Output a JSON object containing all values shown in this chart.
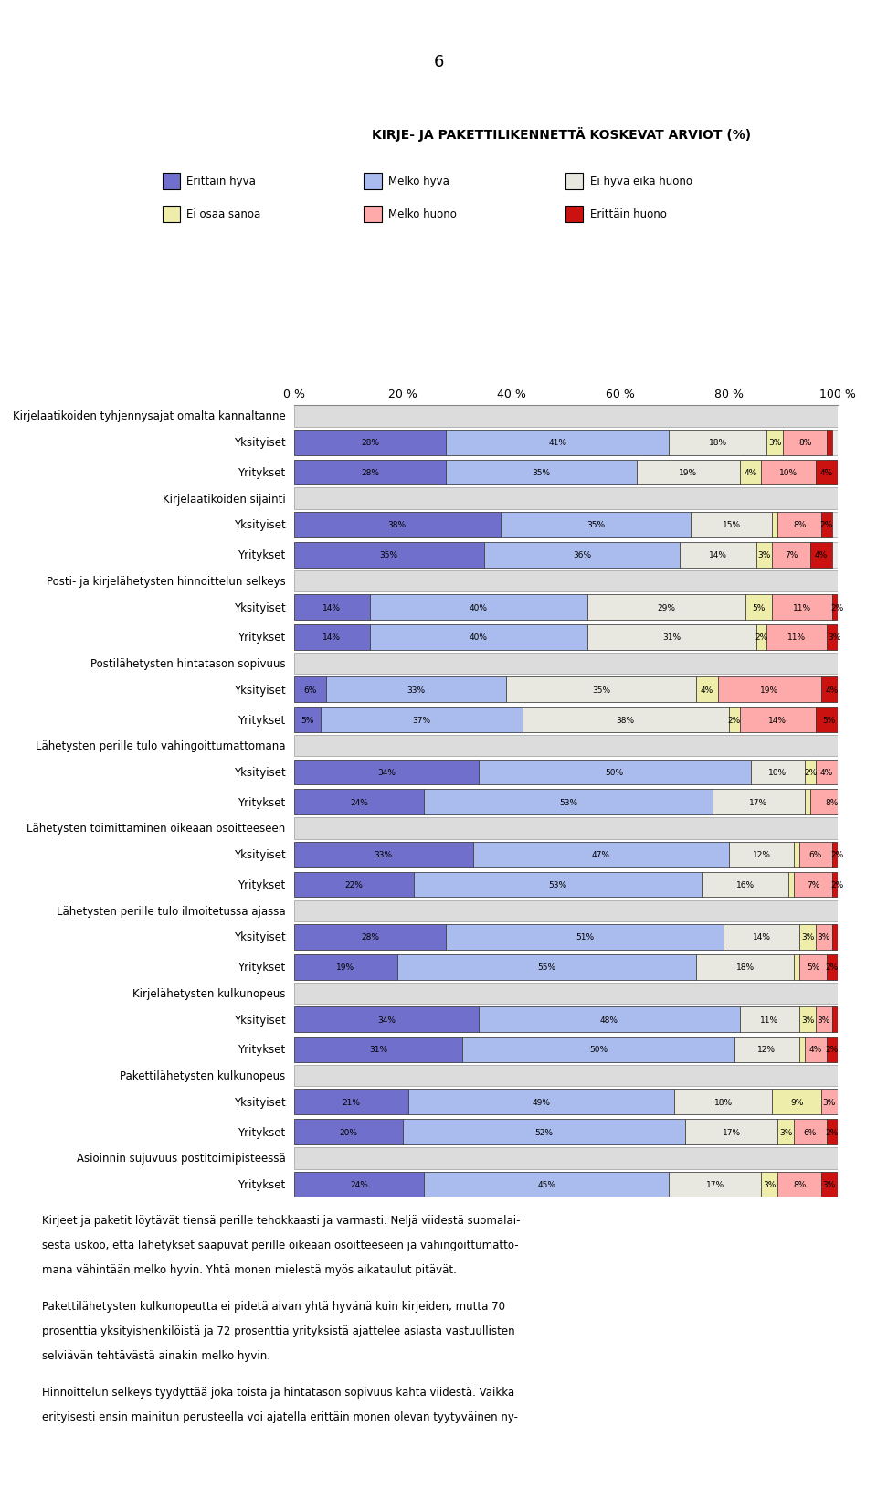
{
  "title": "KIRJE- JA PAKETTILIKENNETTÄ KOSKEVAT ARVIOT (%)",
  "page_number": "6",
  "legend": [
    {
      "label": "Erittäin hyvä",
      "color": "#7070CC"
    },
    {
      "label": "Melko hyvä",
      "color": "#AABBEE"
    },
    {
      "label": "Ei hyvä eikä huono",
      "color": "#E8E8E0"
    },
    {
      "label": "Ei osaa sanoa",
      "color": "#EEEEAA"
    },
    {
      "label": "Melko huono",
      "color": "#FFAAAA"
    },
    {
      "label": "Erittäin huono",
      "color": "#CC1111"
    }
  ],
  "sections": [
    {
      "header": "Kirjelaatikoiden tyhjennysajat omalta kannaltanne",
      "rows": [
        {
          "label": "Yksityiset",
          "values": [
            28,
            41,
            18,
            3,
            8,
            1
          ],
          "labels": [
            "28%",
            "41%",
            "18%",
            "3%",
            "8%",
            "1%"
          ]
        },
        {
          "label": "Yritykset",
          "values": [
            28,
            35,
            19,
            4,
            10,
            4
          ],
          "labels": [
            "28%",
            "35%",
            "19%",
            "4%",
            "10%",
            "4%"
          ]
        }
      ]
    },
    {
      "header": "Kirjelaatikoiden sijainti",
      "rows": [
        {
          "label": "Yksityiset",
          "values": [
            38,
            35,
            15,
            1,
            8,
            2
          ],
          "labels": [
            "38%",
            "35%",
            "15%",
            "1%",
            "8%",
            "2%"
          ]
        },
        {
          "label": "Yritykset",
          "values": [
            35,
            36,
            14,
            3,
            7,
            4
          ],
          "labels": [
            "35%",
            "36%",
            "14%",
            "3%",
            "7%",
            "4%"
          ]
        }
      ]
    },
    {
      "header": "Posti- ja kirjelähetysten hinnoittelun selkeys",
      "rows": [
        {
          "label": "Yksityiset",
          "values": [
            14,
            40,
            29,
            5,
            11,
            2
          ],
          "labels": [
            "14%",
            "40%",
            "29%",
            "5%",
            "11%",
            "2%"
          ]
        },
        {
          "label": "Yritykset",
          "values": [
            14,
            40,
            31,
            2,
            11,
            3
          ],
          "labels": [
            "14%",
            "40%",
            "31%",
            "2%",
            "11%",
            "3%"
          ]
        }
      ]
    },
    {
      "header": "Postilähetysten hintatason sopivuus",
      "rows": [
        {
          "label": "Yksityiset",
          "values": [
            6,
            33,
            35,
            4,
            19,
            4
          ],
          "labels": [
            "6%",
            "33%",
            "35%",
            "4%",
            "19%",
            "4%"
          ]
        },
        {
          "label": "Yritykset",
          "values": [
            5,
            37,
            38,
            2,
            14,
            5
          ],
          "labels": [
            "5%",
            "37%",
            "38%",
            "2%",
            "14%",
            "5%"
          ]
        }
      ]
    },
    {
      "header": "Lähetysten perille tulo vahingoittumattomana",
      "rows": [
        {
          "label": "Yksityiset",
          "values": [
            34,
            50,
            10,
            2,
            4,
            1
          ],
          "labels": [
            "34%",
            "50%",
            "10%",
            "2%",
            "4%",
            "1%"
          ]
        },
        {
          "label": "Yritykset",
          "values": [
            24,
            53,
            17,
            1,
            8,
            0
          ],
          "labels": [
            "24%",
            "53%",
            "17%",
            "1%",
            "8%",
            ""
          ]
        }
      ]
    },
    {
      "header": "Lähetysten toimittaminen oikeaan osoitteeseen",
      "rows": [
        {
          "label": "Yksityiset",
          "values": [
            33,
            47,
            12,
            1,
            6,
            2
          ],
          "labels": [
            "33%",
            "47%",
            "12%",
            "1%",
            "6%",
            "2%"
          ]
        },
        {
          "label": "Yritykset",
          "values": [
            22,
            53,
            16,
            1,
            7,
            2
          ],
          "labels": [
            "22%",
            "53%",
            "16%",
            "1%",
            "7%",
            "2%"
          ]
        }
      ]
    },
    {
      "header": "Lähetysten perille tulo ilmoitetussa ajassa",
      "rows": [
        {
          "label": "Yksityiset",
          "values": [
            28,
            51,
            14,
            3,
            3,
            1
          ],
          "labels": [
            "28%",
            "51%",
            "14%",
            "3%",
            "3%",
            "1%"
          ]
        },
        {
          "label": "Yritykset",
          "values": [
            19,
            55,
            18,
            1,
            5,
            2
          ],
          "labels": [
            "19%",
            "55%",
            "18%",
            "1%",
            "5%",
            "2%"
          ]
        }
      ]
    },
    {
      "header": "Kirjelähetysten kulkunopeus",
      "rows": [
        {
          "label": "Yksityiset",
          "values": [
            34,
            48,
            11,
            3,
            3,
            1
          ],
          "labels": [
            "34%",
            "48%",
            "11%",
            "3%",
            "3%",
            "1%"
          ]
        },
        {
          "label": "Yritykset",
          "values": [
            31,
            50,
            12,
            1,
            4,
            2
          ],
          "labels": [
            "31%",
            "50%",
            "12%",
            "1%",
            "4%",
            "2%"
          ]
        }
      ]
    },
    {
      "header": "Pakettilähetysten kulkunopeus",
      "rows": [
        {
          "label": "Yksityiset",
          "values": [
            21,
            49,
            18,
            9,
            3,
            0
          ],
          "labels": [
            "21%",
            "49%",
            "18%",
            "9%",
            "3%",
            ""
          ]
        },
        {
          "label": "Yritykset",
          "values": [
            20,
            52,
            17,
            3,
            6,
            2
          ],
          "labels": [
            "20%",
            "52%",
            "17%",
            "3%",
            "6%",
            "2%"
          ]
        }
      ]
    },
    {
      "header": "Asioinnin sujuvuus postitoimipisteessä",
      "rows": [
        {
          "label": "Yritykset",
          "values": [
            24,
            45,
            17,
            3,
            8,
            3
          ],
          "labels": [
            "24%",
            "45%",
            "17%",
            "3%",
            "8%",
            "3%"
          ]
        }
      ]
    }
  ],
  "colors": [
    "#7070CC",
    "#AABBEE",
    "#E8E8E0",
    "#EEEEAA",
    "#FFAAAA",
    "#CC1111"
  ],
  "header_bg": "#DCDCDC",
  "bar_bg": "#EBEBEB",
  "bottom_text": [
    "Kirjeet ja paketit löytävät tiensä perille tehokkaasti ja varmasti. Neljä viidestä suomalai-",
    "sesta uskoo, että lähetykset saapuvat perille oikeaan osoitteeseen ja vahingoittumatto-",
    "mana vähintään melko hyvin. Yhtä monen mielestä myös aikataulut pitävät.",
    "",
    "Pakettilähetysten kulkunopeutta ei pidetä aivan yhtä hyvänä kuin kirjeiden, mutta 70",
    "prosenttia yksityishenkilöistä ja 72 prosenttia yrityksistä ajattelee asiasta vastuullisten",
    "selviävän tehtävästä ainakin melko hyvin.",
    "",
    "Hinnoittelun selkeys tyydyttää joka toista ja hintatason sopivuus kahta viidestä. Vaikka",
    "erityisesti ensin mainitun perusteella voi ajatella erittäin monen olevan tyytyväinen ny-"
  ]
}
